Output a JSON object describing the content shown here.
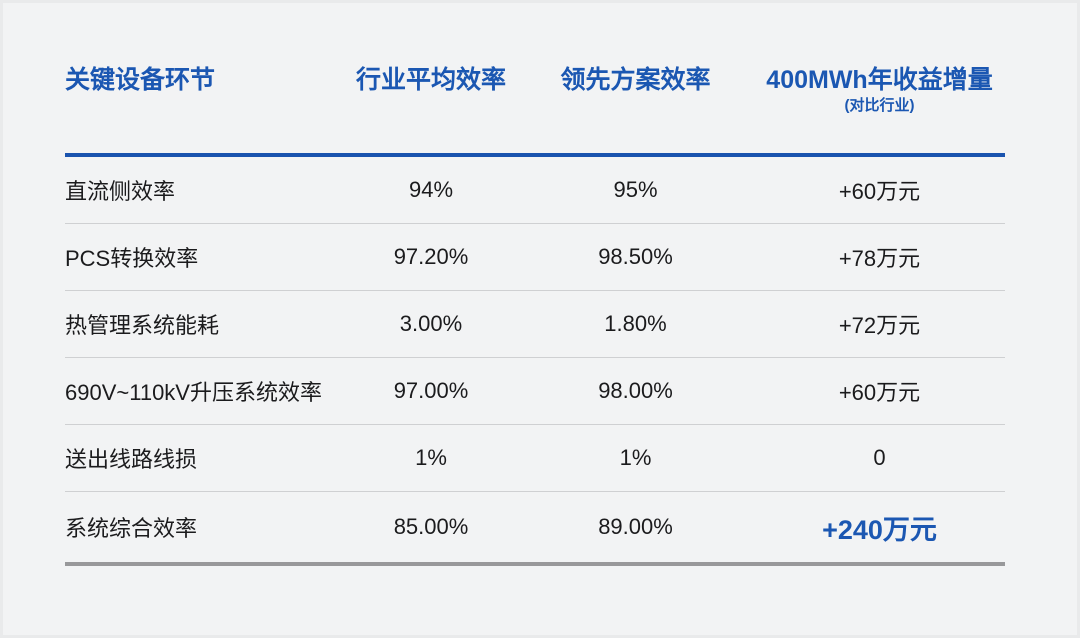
{
  "colors": {
    "background": "#f2f3f4",
    "accent_blue": "#1b57b2",
    "header_rule_blue": "#1a53ae",
    "bottom_rule_gray": "#98989a",
    "row_divider_gray": "#cfd0d2",
    "body_text": "#1b1b1d"
  },
  "table": {
    "columns": [
      {
        "label": "关键设备环节"
      },
      {
        "label": "行业平均效率"
      },
      {
        "label": "领先方案效率"
      },
      {
        "label": "400MWh年收益增量",
        "sublabel": "(对比行业)"
      }
    ],
    "rows": [
      {
        "label": "直流侧效率",
        "industry": "94%",
        "leading": "95%",
        "gain": "+60万元"
      },
      {
        "label": "PCS转换效率",
        "industry": "97.20%",
        "leading": "98.50%",
        "gain": "+78万元"
      },
      {
        "label": "热管理系统能耗",
        "industry": "3.00%",
        "leading": "1.80%",
        "gain": "+72万元"
      },
      {
        "label": "690V~110kV升压系统效率",
        "industry": "97.00%",
        "leading": "98.00%",
        "gain": "+60万元"
      },
      {
        "label": "送出线路线损",
        "industry": "1%",
        "leading": "1%",
        "gain": "0"
      },
      {
        "label": "系统综合效率",
        "industry": "85.00%",
        "leading": "89.00%",
        "gain": "+240万元",
        "highlight": true
      }
    ]
  },
  "chart_data": {
    "type": "table",
    "title": "",
    "columns": [
      "关键设备环节",
      "行业平均效率",
      "领先方案效率",
      "400MWh年收益增量(对比行业)"
    ],
    "rows": [
      [
        "直流侧效率",
        "94%",
        "95%",
        "+60万元"
      ],
      [
        "PCS转换效率",
        "97.20%",
        "98.50%",
        "+78万元"
      ],
      [
        "热管理系统能耗",
        "3.00%",
        "1.80%",
        "+72万元"
      ],
      [
        "690V~110kV升压系统效率",
        "97.00%",
        "98.00%",
        "+60万元"
      ],
      [
        "送出线路线损",
        "1%",
        "1%",
        "0"
      ],
      [
        "系统综合效率",
        "85.00%",
        "89.00%",
        "+240万元"
      ]
    ],
    "notes": {
      "highlight_cell": "系统综合效率 row, gain column rendered bold blue",
      "numeric_gains_wan_yuan": [
        60,
        78,
        72,
        60,
        0,
        240
      ]
    }
  }
}
